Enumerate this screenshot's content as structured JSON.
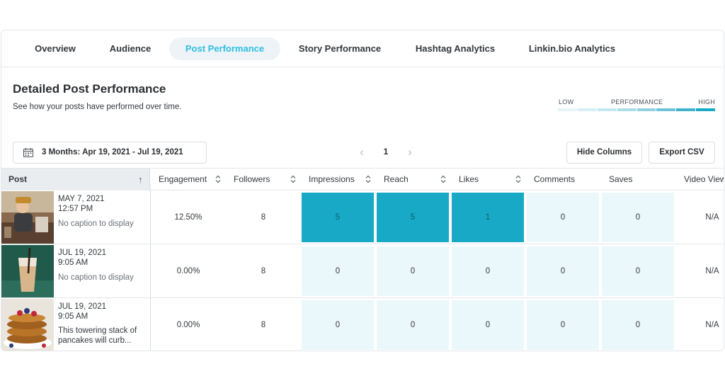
{
  "tabs": [
    {
      "label": "Overview",
      "active": false
    },
    {
      "label": "Audience",
      "active": false
    },
    {
      "label": "Post Performance",
      "active": true
    },
    {
      "label": "Story Performance",
      "active": false
    },
    {
      "label": "Hashtag Analytics",
      "active": false
    },
    {
      "label": "Linkin.bio Analytics",
      "active": false
    }
  ],
  "header": {
    "title": "Detailed Post Performance",
    "subtitle": "See how your posts have performed over time."
  },
  "legend": {
    "low": "LOW",
    "mid": "PERFORMANCE",
    "high": "HIGH",
    "colors": [
      "#e4f3f7",
      "#d6eef4",
      "#c3e7ef",
      "#abdde9",
      "#8fd1e1",
      "#6cc3d8",
      "#3fb3cd",
      "#17a9c5"
    ]
  },
  "controls": {
    "date_range": "3 Months: Apr 19, 2021 - Jul 19, 2021",
    "page": "1",
    "hide_columns": "Hide Columns",
    "export_csv": "Export CSV"
  },
  "table": {
    "columns": [
      "Post",
      "Engagement",
      "Followers",
      "Impressions",
      "Reach",
      "Likes",
      "Comments",
      "Saves",
      "Video View"
    ],
    "rows": [
      {
        "date": "MAY 7, 2021",
        "time": "12:57 PM",
        "caption": "No caption to display",
        "thumb": "coffee-shop-photo",
        "engagement": "12.50%",
        "followers": "8",
        "impressions": "5",
        "reach": "5",
        "likes": "1",
        "comments": "0",
        "saves": "0",
        "video_views": "N/A"
      },
      {
        "date": "JUL 19, 2021",
        "time": "9:05 AM",
        "caption": "No caption to display",
        "thumb": "iced-coffee-photo",
        "engagement": "0.00%",
        "followers": "8",
        "impressions": "0",
        "reach": "0",
        "likes": "0",
        "comments": "0",
        "saves": "0",
        "video_views": "N/A"
      },
      {
        "date": "JUL 19, 2021",
        "time": "9:05 AM",
        "caption": "This towering stack of pancakes will curb...",
        "thumb": "pancakes-photo",
        "engagement": "0.00%",
        "followers": "8",
        "impressions": "0",
        "reach": "0",
        "likes": "0",
        "comments": "0",
        "saves": "0",
        "video_views": "N/A"
      }
    ]
  },
  "colors": {
    "accent": "#2fbfe0",
    "heat_high": "#17a9c5",
    "heat_low": "#ebf8fb"
  }
}
